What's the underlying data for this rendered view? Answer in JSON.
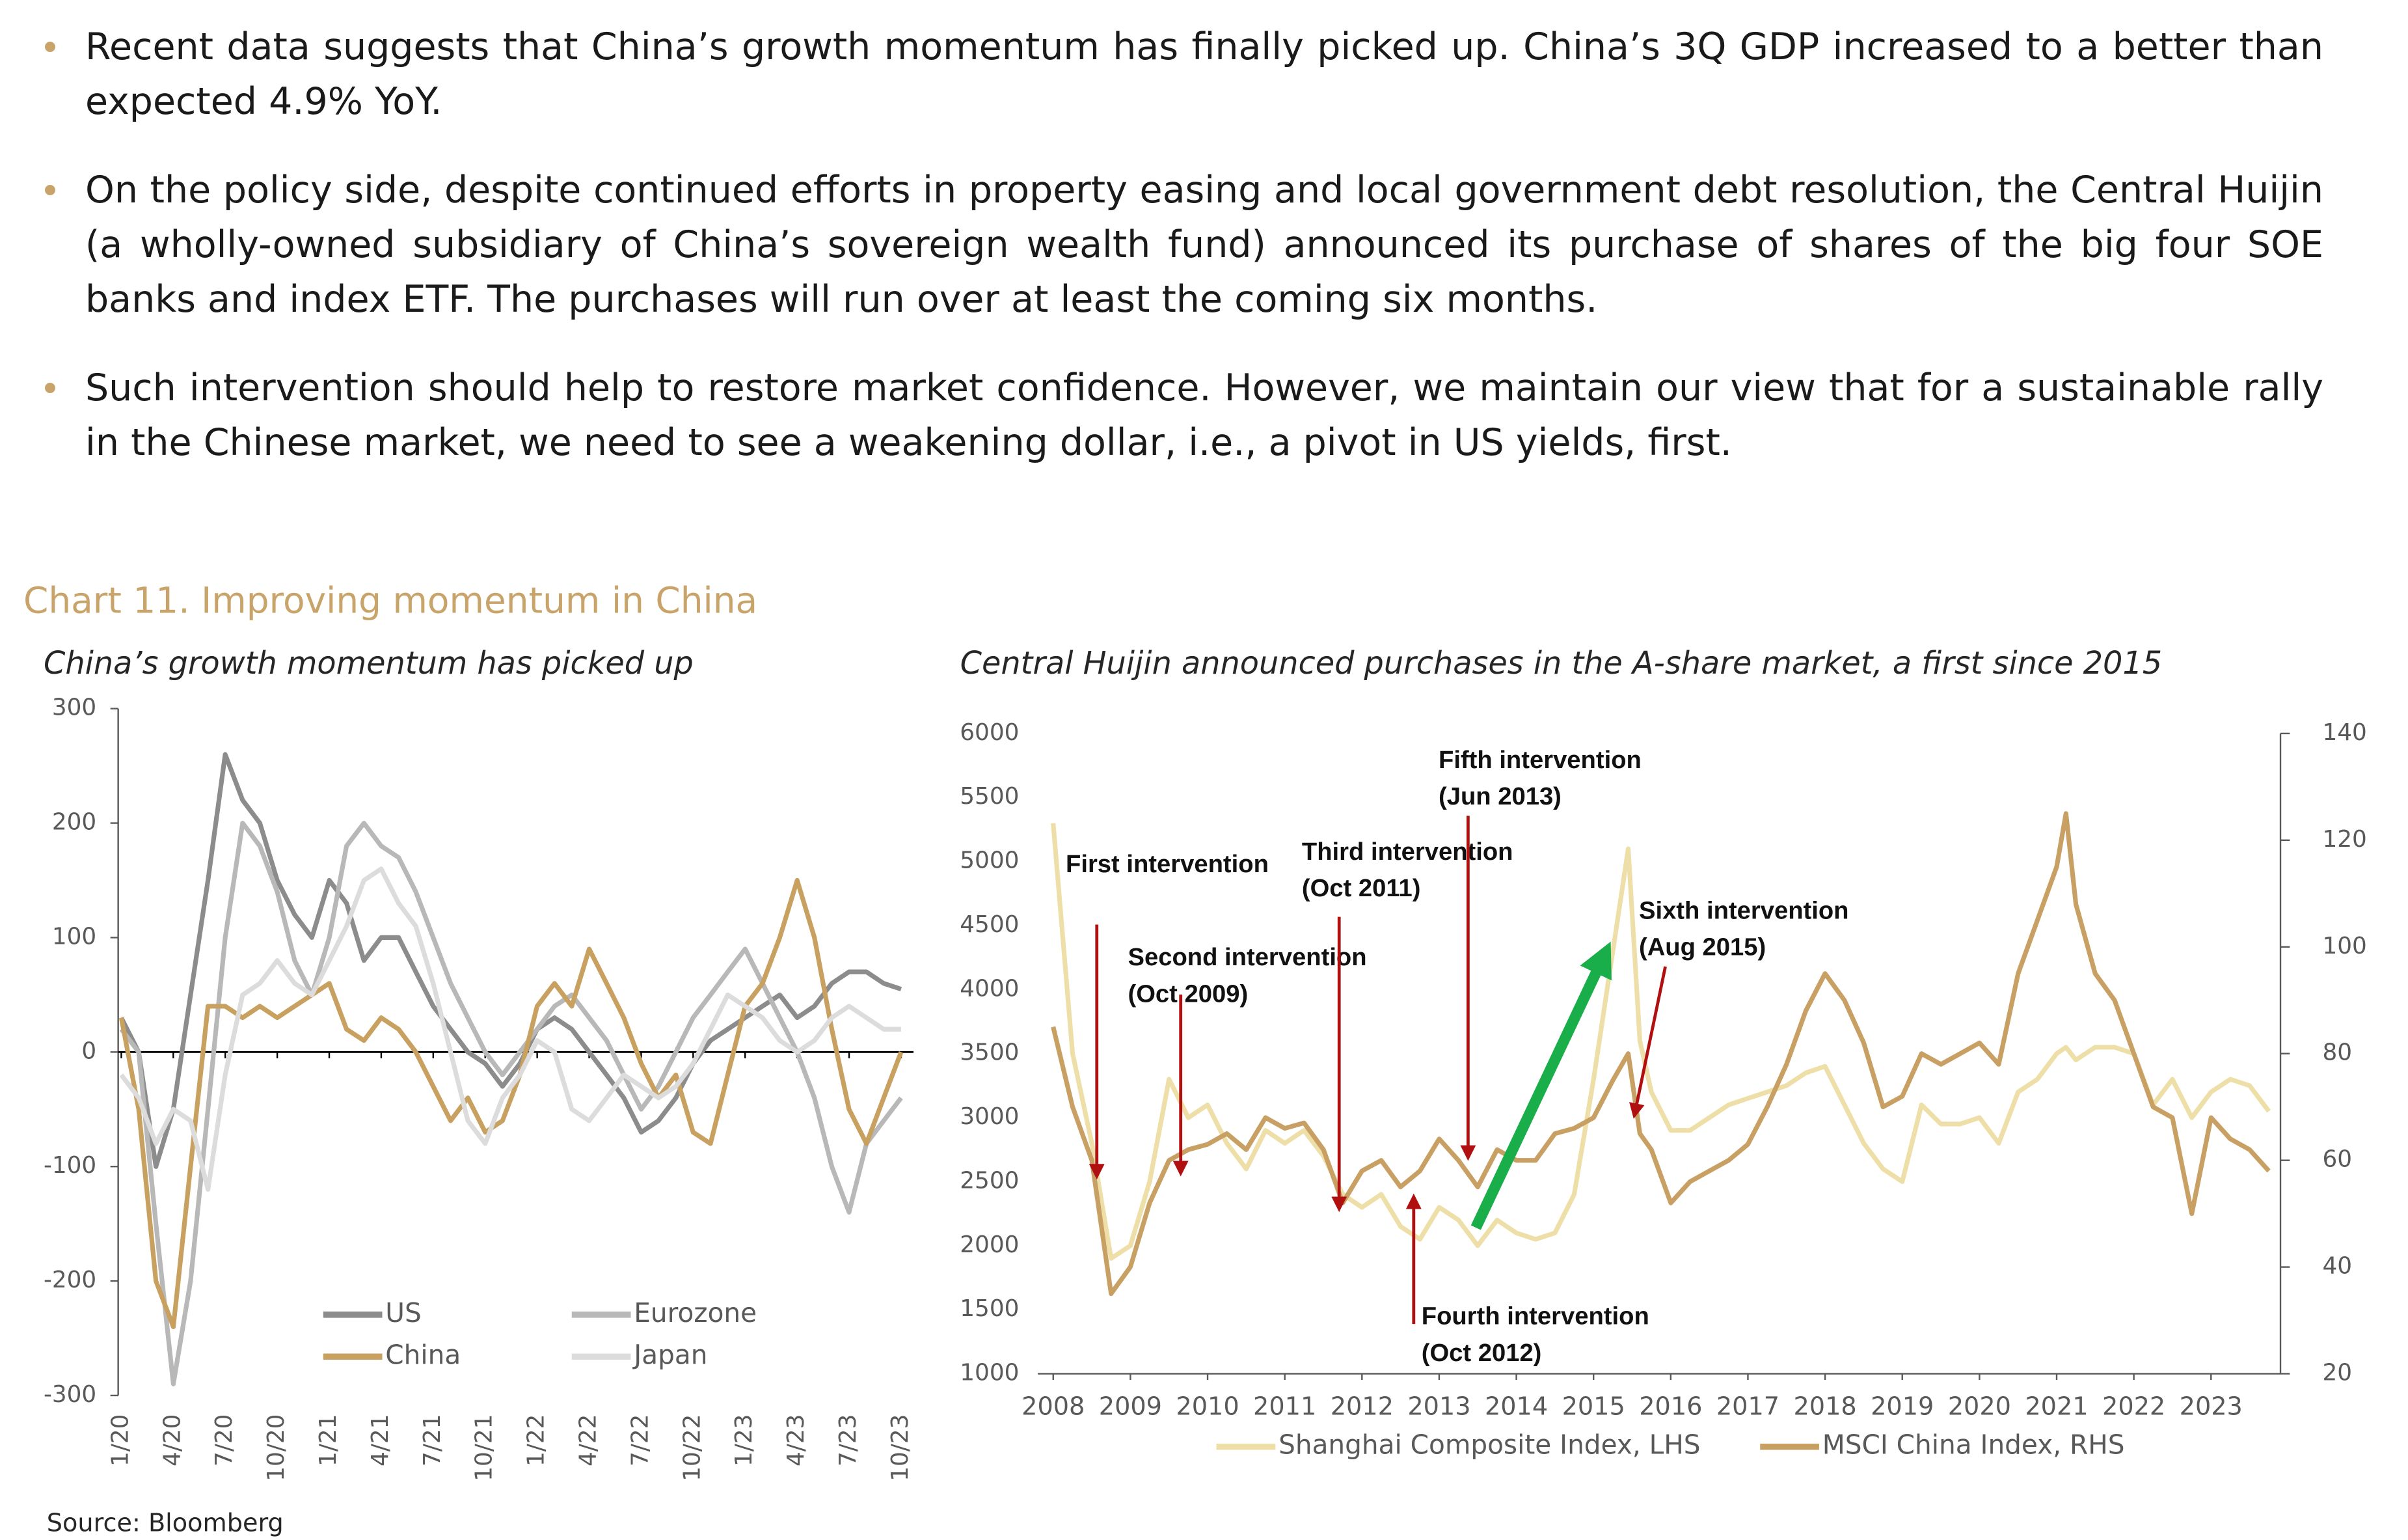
{
  "bullets": [
    "Recent data suggests that China’s growth momentum has finally picked up. China’s 3Q GDP increased to a better than expected 4.9% YoY.",
    "On the policy side, despite continued efforts in property easing and local government debt resolution, the Central Huijin (a wholly-owned subsidiary of China’s sovereign wealth fund) announced its purchase of shares of the big four SOE banks and index ETF. The purchases will run over at least the coming six months.",
    "Such intervention should help to restore market confidence. However, we maintain our view that for a sustainable rally in the Chinese market, we need to see a weakening dollar, i.e., a pivot in US yields, first."
  ],
  "chart_title": "Chart 11. Improving momentum in China",
  "source": "Source: Bloomberg",
  "chart_data": [
    {
      "type": "line",
      "title": "China’s growth momentum has picked up",
      "categories": [
        "1/20",
        null,
        null,
        "4/20",
        null,
        null,
        "7/20",
        null,
        null,
        "10/20",
        null,
        null,
        "1/21",
        null,
        null,
        "4/21",
        null,
        null,
        "7/21",
        null,
        null,
        "10/21",
        null,
        null,
        "1/22",
        null,
        null,
        "4/22",
        null,
        null,
        "7/22",
        null,
        null,
        "10/22",
        null,
        null,
        "1/23",
        null,
        null,
        "4/23",
        null,
        null,
        "7/23",
        null,
        null,
        "10/23"
      ],
      "series": [
        {
          "name": "US",
          "color": "#8c8c8c",
          "values": [
            30,
            0,
            -100,
            -50,
            50,
            150,
            260,
            220,
            200,
            150,
            120,
            100,
            150,
            130,
            80,
            100,
            100,
            70,
            40,
            20,
            0,
            -10,
            -30,
            -10,
            20,
            30,
            20,
            0,
            -20,
            -40,
            -70,
            -60,
            -40,
            -10,
            10,
            20,
            30,
            40,
            50,
            30,
            40,
            60,
            70,
            70,
            60,
            55
          ]
        },
        {
          "name": "Eurozone",
          "color": "#b8b8b8",
          "values": [
            20,
            0,
            -150,
            -290,
            -200,
            -50,
            100,
            200,
            180,
            140,
            80,
            50,
            100,
            180,
            200,
            180,
            170,
            140,
            100,
            60,
            30,
            0,
            -20,
            0,
            20,
            40,
            50,
            30,
            10,
            -20,
            -50,
            -30,
            0,
            30,
            50,
            70,
            90,
            60,
            30,
            0,
            -40,
            -100,
            -140,
            -80,
            -60,
            -40
          ]
        },
        {
          "name": "China",
          "color": "#c8a060",
          "values": [
            30,
            -50,
            -200,
            -240,
            -100,
            40,
            40,
            30,
            40,
            30,
            40,
            50,
            60,
            20,
            10,
            30,
            20,
            0,
            -30,
            -60,
            -40,
            -70,
            -60,
            -20,
            40,
            60,
            40,
            90,
            60,
            30,
            -10,
            -40,
            -20,
            -70,
            -80,
            -20,
            40,
            60,
            100,
            150,
            100,
            20,
            -50,
            -80,
            -40,
            0
          ]
        },
        {
          "name": "Japan",
          "color": "#dcdcdc",
          "values": [
            -20,
            -40,
            -80,
            -50,
            -60,
            -120,
            -20,
            50,
            60,
            80,
            60,
            50,
            80,
            110,
            150,
            160,
            130,
            110,
            60,
            0,
            -60,
            -80,
            -40,
            -20,
            10,
            0,
            -50,
            -60,
            -40,
            -20,
            -30,
            -40,
            -30,
            -10,
            20,
            50,
            40,
            30,
            10,
            0,
            10,
            30,
            40,
            30,
            20,
            20
          ]
        }
      ],
      "ylim": [
        -300,
        300
      ],
      "yticks": [
        300,
        200,
        100,
        0,
        -100,
        -200,
        -300
      ],
      "legend": "lower center"
    },
    {
      "type": "line",
      "title": "Central Huijin announced purchases in the A-share market, a first since 2015",
      "x": [
        2008,
        2008.25,
        2008.5,
        2008.75,
        2009,
        2009.25,
        2009.5,
        2009.75,
        2010,
        2010.25,
        2010.5,
        2010.75,
        2011,
        2011.25,
        2011.5,
        2011.75,
        2012,
        2012.25,
        2012.5,
        2012.75,
        2013,
        2013.25,
        2013.5,
        2013.75,
        2014,
        2014.25,
        2014.5,
        2014.75,
        2015,
        2015.25,
        2015.45,
        2015.6,
        2015.75,
        2016,
        2016.25,
        2016.5,
        2016.75,
        2017,
        2017.25,
        2017.5,
        2017.75,
        2018,
        2018.25,
        2018.5,
        2018.75,
        2019,
        2019.25,
        2019.5,
        2019.75,
        2020,
        2020.25,
        2020.5,
        2020.75,
        2021,
        2021.12,
        2021.25,
        2021.5,
        2021.75,
        2022,
        2022.25,
        2022.5,
        2022.75,
        2023,
        2023.25,
        2023.5,
        2023.75
      ],
      "series": [
        {
          "name": "Shanghai Composite Index, LHS",
          "color": "#eedfa8",
          "values": [
            5300,
            3500,
            2800,
            1900,
            2000,
            2500,
            3300,
            3000,
            3100,
            2800,
            2600,
            2900,
            2800,
            2900,
            2700,
            2400,
            2300,
            2400,
            2150,
            2050,
            2300,
            2200,
            2000,
            2200,
            2100,
            2050,
            2100,
            2400,
            3300,
            4300,
            5100,
            3600,
            3200,
            2900,
            2900,
            3000,
            3100,
            3150,
            3200,
            3250,
            3350,
            3400,
            3100,
            2800,
            2600,
            2500,
            3100,
            2950,
            2950,
            3000,
            2800,
            3200,
            3300,
            3500,
            3550,
            3450,
            3550,
            3550,
            3500,
            3100,
            3300,
            3000,
            3200,
            3300,
            3250,
            3050
          ]
        },
        {
          "name": "MSCI China Index, RHS",
          "color": "#c8a064",
          "axis": "y2",
          "values": [
            85,
            70,
            60,
            35,
            40,
            52,
            60,
            62,
            63,
            65,
            62,
            68,
            66,
            67,
            62,
            52,
            58,
            60,
            55,
            58,
            64,
            60,
            55,
            62,
            60,
            60,
            65,
            66,
            68,
            75,
            80,
            65,
            62,
            52,
            56,
            58,
            60,
            63,
            70,
            78,
            88,
            95,
            90,
            82,
            70,
            72,
            80,
            78,
            80,
            82,
            78,
            95,
            105,
            115,
            125,
            108,
            95,
            90,
            80,
            70,
            68,
            50,
            68,
            64,
            62,
            58
          ]
        }
      ],
      "xlim": [
        2007.8,
        2023.9
      ],
      "xticks": [
        2008,
        2009,
        2010,
        2011,
        2012,
        2013,
        2014,
        2015,
        2016,
        2017,
        2018,
        2019,
        2020,
        2021,
        2022,
        2023
      ],
      "ylim": [
        1000,
        6000
      ],
      "yticks": [
        1000,
        1500,
        2000,
        2500,
        3000,
        3500,
        4000,
        4500,
        5000,
        5500,
        6000
      ],
      "y2lim": [
        20,
        140
      ],
      "y2ticks": [
        20,
        40,
        60,
        80,
        100,
        120,
        140
      ],
      "annotations": [
        {
          "lines": [
            "First intervention"
          ]
        },
        {
          "lines": [
            "Second intervention",
            "(Oct 2009)"
          ]
        },
        {
          "lines": [
            "Third intervention",
            "(Oct 2011)"
          ]
        },
        {
          "lines": [
            "Fourth intervention",
            "(Oct 2012)"
          ]
        },
        {
          "lines": [
            "Fifth intervention",
            "(Jun 2013)"
          ]
        },
        {
          "lines": [
            "Sixth intervention",
            "(Aug 2015)"
          ]
        }
      ]
    }
  ]
}
